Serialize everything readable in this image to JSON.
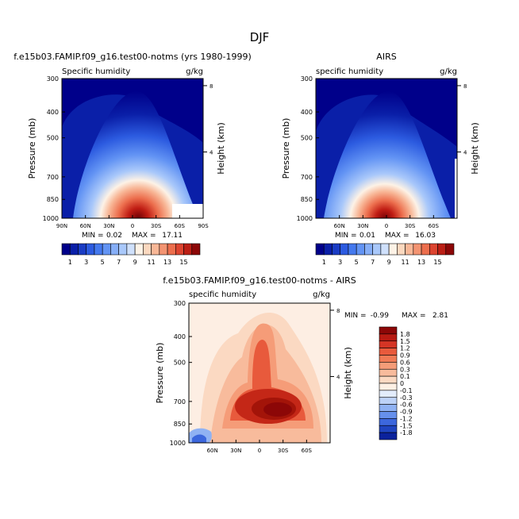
{
  "page_title": "DJF",
  "chart_data": [
    {
      "id": "model",
      "type": "contour",
      "title": "f.e15b03.FAMIP.f09_g16.test00-notms (yrs 1980-1999)",
      "left_label": "Specific humidity",
      "right_label": "g/kg",
      "ylabel": "Pressure (mb)",
      "y2label": "Height (km)",
      "yticks": [
        "300",
        "400",
        "500",
        "700",
        "850",
        "1000"
      ],
      "ytick_values": [
        300,
        400,
        500,
        700,
        850,
        1000
      ],
      "y2ticks": [
        "8",
        "4"
      ],
      "y2tick_values": [
        8,
        4
      ],
      "xticks": [
        "90N",
        "60N",
        "30N",
        "0",
        "30S",
        "60S",
        "90S"
      ],
      "xtick_values": [
        90,
        60,
        30,
        0,
        -30,
        -60,
        -90
      ],
      "xlim": [
        90,
        -90
      ],
      "stats_min_label": "MIN =",
      "stats_min": "0.02",
      "stats_max_label": "MAX =",
      "stats_max": "17.11",
      "peak_value": 17.11,
      "contour_levels": [
        1,
        2,
        3,
        4,
        5,
        6,
        7,
        8,
        9,
        10,
        11,
        12,
        13,
        14,
        15
      ]
    },
    {
      "id": "obs",
      "type": "contour",
      "title": "AIRS",
      "left_label": "specific humidity",
      "right_label": "g/kg",
      "ylabel": "Pressure (mb)",
      "y2label": "Height (km)",
      "yticks": [
        "300",
        "400",
        "500",
        "700",
        "850",
        "1000"
      ],
      "ytick_values": [
        300,
        400,
        500,
        700,
        850,
        1000
      ],
      "y2ticks": [
        "8",
        "4"
      ],
      "y2tick_values": [
        8,
        4
      ],
      "xticks": [
        "60N",
        "30N",
        "0",
        "30S",
        "60S"
      ],
      "xtick_values": [
        60,
        30,
        0,
        -30,
        -60
      ],
      "xlim": [
        90,
        -90
      ],
      "stats_min_label": "MIN =",
      "stats_min": "0.01",
      "stats_max_label": "MAX =",
      "stats_max": "16.03",
      "peak_value": 16.03,
      "contour_levels": [
        1,
        2,
        3,
        4,
        5,
        6,
        7,
        8,
        9,
        10,
        11,
        12,
        13,
        14,
        15
      ]
    },
    {
      "id": "diff",
      "type": "contour",
      "title": "f.e15b03.FAMIP.f09_g16.test00-notms - AIRS",
      "left_label": "specific humidity",
      "right_label": "g/kg",
      "ylabel": "Pressure (mb)",
      "y2label": "Height (km)",
      "yticks": [
        "300",
        "400",
        "500",
        "700",
        "850",
        "1000"
      ],
      "ytick_values": [
        300,
        400,
        500,
        700,
        850,
        1000
      ],
      "y2ticks": [
        "8",
        "4"
      ],
      "y2tick_values": [
        8,
        4
      ],
      "xticks": [
        "60N",
        "30N",
        "0",
        "30S",
        "60S"
      ],
      "xtick_values": [
        60,
        30,
        0,
        -30,
        -60
      ],
      "xlim": [
        90,
        -90
      ],
      "stats_min_label": "MIN =",
      "stats_min": "-0.99",
      "stats_max_label": "MAX =",
      "stats_max": "2.81",
      "contour_levels": [
        -1.8,
        -1.5,
        -1.2,
        -0.9,
        -0.6,
        -0.3,
        -0.1,
        0,
        0.1,
        0.3,
        0.6,
        0.9,
        1.2,
        1.5,
        1.8
      ]
    }
  ],
  "colorbar_top": {
    "labels": [
      "1",
      "3",
      "5",
      "7",
      "9",
      "11",
      "13",
      "15"
    ],
    "colors": [
      "#00008a",
      "#0a1fa8",
      "#1a3cc4",
      "#2c5be0",
      "#4479ee",
      "#6394f4",
      "#86aef7",
      "#a9c8fa",
      "#cfe0fb",
      "#fdf2e6",
      "#fbd8bf",
      "#f8b797",
      "#f39472",
      "#ec6e4d",
      "#dc4430",
      "#bb1f15",
      "#8c0707"
    ]
  },
  "colorbar_diff": {
    "labels": [
      "1.8",
      "1.5",
      "1.2",
      "0.9",
      "0.6",
      "0.3",
      "0.1",
      "0",
      "-0.1",
      "-0.3",
      "-0.6",
      "-0.9",
      "-1.2",
      "-1.5",
      "-1.8"
    ],
    "colors": [
      "#8c0707",
      "#b81a12",
      "#d43525",
      "#e85a3c",
      "#f07a55",
      "#f59c78",
      "#f8bb9c",
      "#fbd9c2",
      "#fdf0e4",
      "#e3ecfb",
      "#bdd2f7",
      "#90b2f3",
      "#6690ec",
      "#3c67dd",
      "#1f44c0",
      "#0b229c"
    ]
  }
}
